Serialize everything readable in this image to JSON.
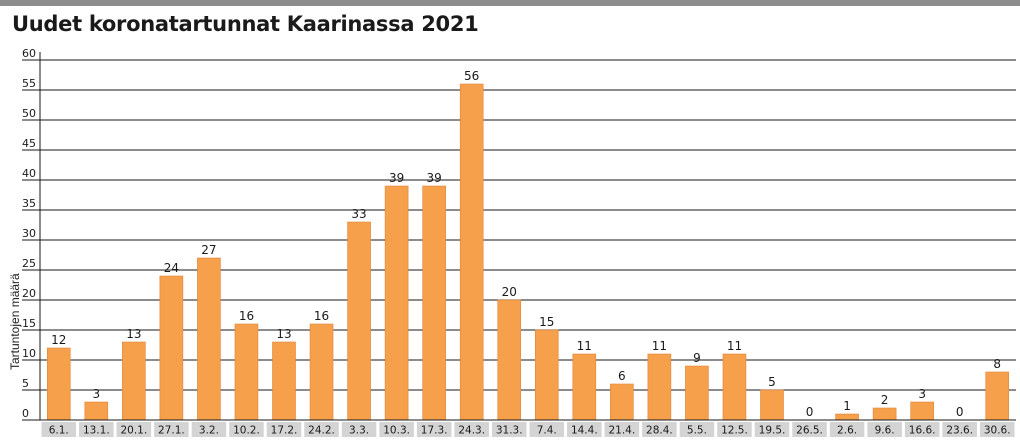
{
  "chart_data": {
    "type": "bar",
    "title": "Uudet koronatartunnat Kaarinassa 2021",
    "ylabel": "Tartuntojen määrä",
    "xlabel": "",
    "ylim": [
      0,
      60
    ],
    "yticks": [
      0,
      5,
      10,
      15,
      20,
      25,
      30,
      35,
      40,
      45,
      50,
      55,
      60
    ],
    "grid": "horizontal",
    "categories": [
      "6.1.",
      "13.1.",
      "20.1.",
      "27.1.",
      "3.2.",
      "10.2.",
      "17.2.",
      "24.2.",
      "3.3.",
      "10.3.",
      "17.3.",
      "24.3.",
      "31.3.",
      "7.4.",
      "14.4.",
      "21.4.",
      "28.4.",
      "5.5.",
      "12.5.",
      "19.5.",
      "26.5.",
      "2.6.",
      "9.6.",
      "16.6.",
      "23.6.",
      "30.6."
    ],
    "values": [
      12,
      3,
      13,
      24,
      27,
      16,
      13,
      16,
      33,
      39,
      39,
      56,
      20,
      15,
      11,
      6,
      11,
      9,
      11,
      5,
      0,
      1,
      2,
      3,
      0,
      8
    ],
    "data_labels": true
  },
  "colors": {
    "bar": "#f7a04c",
    "bar_edge": "#e0843a",
    "grid": "#1a1a1a",
    "axis": "#1a1a1a",
    "category_box": "#d4d4d4",
    "top_bar": "#8c8c8c",
    "text": "#1a1a1a"
  }
}
